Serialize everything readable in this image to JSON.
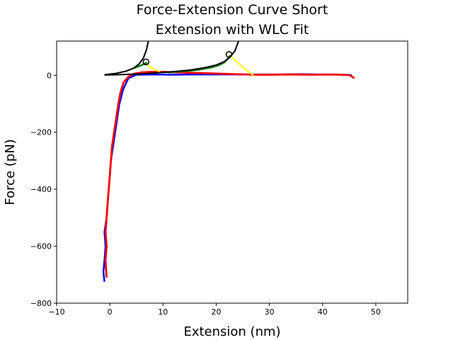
{
  "chart_data": {
    "type": "line",
    "title_lines": [
      "Force-Extension Curve Short",
      "Extension with WLC Fit"
    ],
    "xlabel": "Extension (nm)",
    "ylabel": "Force (pN)",
    "xlim": [
      -10,
      56
    ],
    "ylim": [
      -800,
      120
    ],
    "xticks": [
      -10,
      0,
      10,
      20,
      30,
      40,
      50
    ],
    "yticks": [
      0,
      -200,
      -400,
      -600,
      -800
    ],
    "legend": "none",
    "grid": false,
    "colors": {
      "approach": "#0000ff",
      "retract": "#ff0000",
      "rupture": "#ffff00",
      "fit_region": "#008000",
      "wlc_fit": "#000000"
    },
    "series": [
      {
        "role": "approach",
        "x": [
          -1.0,
          -1.2,
          -1.0,
          -0.8,
          -1.0,
          -0.6,
          -0.4,
          -0.2,
          0.0,
          0.2,
          0.6,
          1.0,
          1.4,
          1.8,
          2.5,
          3.5,
          5,
          8,
          12,
          16,
          20,
          24,
          28,
          32,
          36,
          40,
          44,
          45.5
        ],
        "y": [
          -725,
          -690,
          -650,
          -600,
          -550,
          -500,
          -450,
          -400,
          -350,
          -300,
          -250,
          -200,
          -150,
          -100,
          -50,
          -10,
          2,
          3,
          2,
          3,
          3,
          3,
          3,
          3,
          4,
          3,
          2,
          0
        ]
      },
      {
        "role": "retract",
        "x": [
          -0.6,
          -0.8,
          -0.6,
          -0.8,
          -0.6,
          -0.4,
          -0.2,
          0.0,
          0.2,
          0.4,
          0.8,
          1.2,
          1.6,
          2.0,
          2.6,
          3.5,
          4.5,
          6,
          8,
          9.5,
          27,
          30,
          34,
          38,
          42,
          45,
          46
        ],
        "y": [
          -710,
          -650,
          -600,
          -550,
          -500,
          -450,
          -400,
          -350,
          -300,
          -250,
          -200,
          -150,
          -100,
          -60,
          -25,
          -5,
          5,
          10,
          12,
          12,
          2,
          2,
          3,
          2,
          3,
          1,
          -10
        ]
      },
      {
        "role": "rupture",
        "x": [
          6.5,
          7.5,
          8.5,
          9.5
        ],
        "y": [
          45,
          30,
          20,
          12
        ],
        "x2": [
          22.5,
          24,
          25.5,
          27
        ],
        "y2": [
          72,
          45,
          20,
          0
        ]
      },
      {
        "role": "fit_region",
        "x": [
          4.5,
          5.5,
          6.5,
          7.0
        ],
        "y": [
          25,
          32,
          40,
          45
        ],
        "x2": [
          11,
          14,
          17,
          19,
          20.5,
          21.5,
          22.2,
          22.6
        ],
        "y2": [
          10,
          14,
          20,
          27,
          35,
          45,
          58,
          70
        ]
      },
      {
        "role": "wlc_fit",
        "x": [
          -1,
          1,
          3,
          4.5,
          5.5,
          6.3,
          6.9,
          7.3
        ],
        "y": [
          2,
          6,
          14,
          25,
          40,
          60,
          90,
          125
        ],
        "x2": [
          -1,
          3,
          7,
          11,
          15,
          18,
          20,
          21.5,
          22.5,
          23.5,
          24.3
        ],
        "y2": [
          1,
          3,
          6,
          11,
          18,
          27,
          36,
          48,
          62,
          85,
          125
        ]
      }
    ],
    "markers": [
      {
        "x": 6.8,
        "y": 47
      },
      {
        "x": 22.4,
        "y": 73
      }
    ]
  }
}
